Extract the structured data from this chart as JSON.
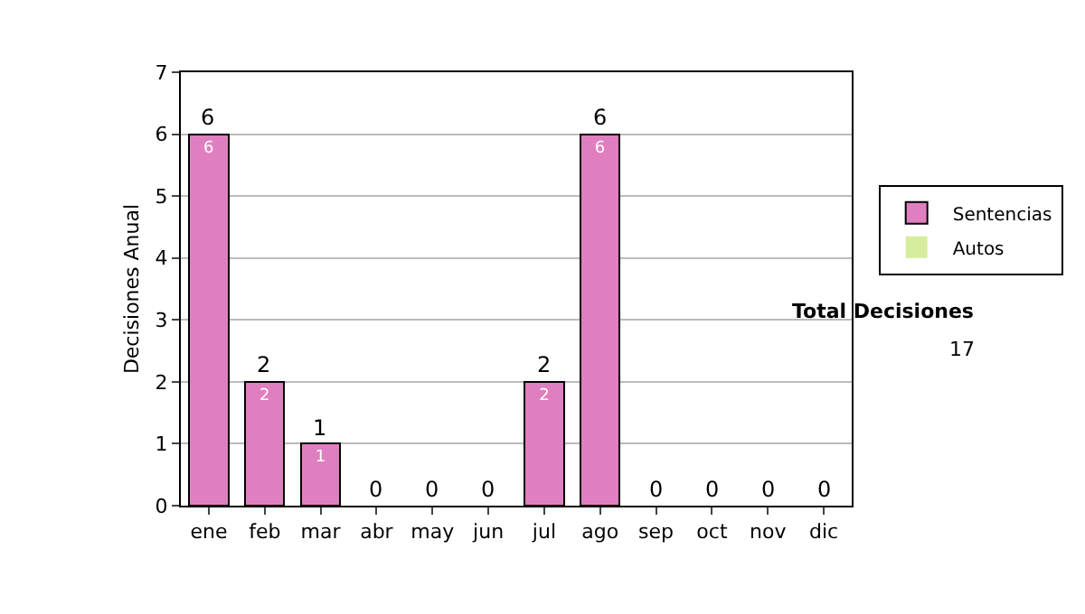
{
  "chart_data": {
    "type": "bar",
    "stacked": true,
    "ylabel": "Decisiones Anual",
    "categories": [
      "ene",
      "feb",
      "mar",
      "abr",
      "may",
      "jun",
      "jul",
      "ago",
      "sep",
      "oct",
      "nov",
      "dic"
    ],
    "series": [
      {
        "name": "Sentencias",
        "color": "#e07fc0",
        "values": [
          6,
          2,
          1,
          0,
          0,
          0,
          2,
          6,
          0,
          0,
          0,
          0
        ],
        "value_labels": [
          "6",
          "2",
          "1",
          null,
          null,
          null,
          "2",
          "6",
          null,
          null,
          null,
          null
        ]
      },
      {
        "name": "Autos",
        "color": "#d4ec9c",
        "values": [
          0,
          0,
          0,
          0,
          0,
          0,
          0,
          0,
          0,
          0,
          0,
          0
        ]
      }
    ],
    "totals": [
      "6",
      "2",
      "1",
      "0",
      "0",
      "0",
      "2",
      "6",
      "0",
      "0",
      "0",
      "0"
    ],
    "ylim": [
      0,
      7
    ],
    "yticks": [
      0,
      1,
      2,
      3,
      4,
      5,
      6,
      7
    ],
    "grid": "y",
    "legend": "right",
    "annotations": [
      "Total Decisiones",
      "17"
    ]
  }
}
